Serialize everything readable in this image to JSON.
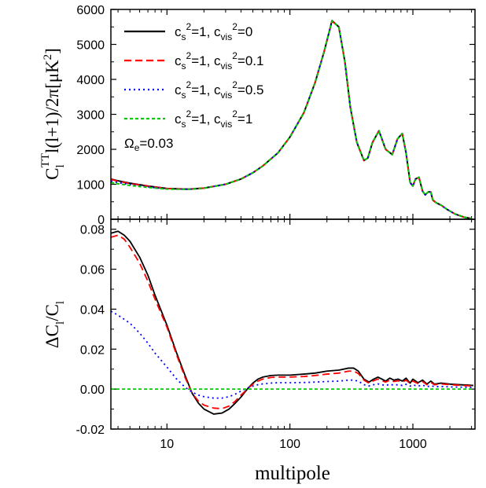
{
  "chart_data": [
    {
      "type": "line",
      "panel": "top",
      "title": "",
      "xlabel": "multipole",
      "ylabel": {
        "base": "C",
        "sub": "l",
        "sup": "TT",
        "rest": "l(l+1)/2π[μK",
        "unit_sup": "2",
        "close": "]"
      },
      "xscale": "log",
      "xlim": [
        3.5,
        3200
      ],
      "ylim": [
        0,
        6000
      ],
      "x_ticks": [
        10,
        100,
        1000
      ],
      "x_tick_labels": [
        "10",
        "100",
        "1000"
      ],
      "y_ticks": [
        0,
        1000,
        2000,
        3000,
        4000,
        5000,
        6000
      ],
      "y_tick_labels": [
        "0",
        "1000",
        "2000",
        "3000",
        "4000",
        "5000",
        "6000"
      ],
      "legend_position": "top-left",
      "annotation": {
        "base": "Ω",
        "sub": "e",
        "rest": "=0.03"
      },
      "series": [
        {
          "legend": {
            "c": "c",
            "s": "s",
            "eq1": "=1,  ",
            "cv": "c",
            "vis": "vis",
            "eq2": "=0",
            "sup": "2"
          },
          "color": "#000000",
          "dash": "solid",
          "x": [
            3.5,
            4,
            5,
            7,
            10,
            15,
            20,
            30,
            40,
            50,
            60,
            80,
            100,
            130,
            160,
            190,
            220,
            250,
            280,
            310,
            350,
            400,
            430,
            470,
            530,
            600,
            680,
            750,
            820,
            880,
            950,
            1000,
            1050,
            1120,
            1200,
            1260,
            1330,
            1400,
            1450,
            1550,
            1700,
            1900,
            2200,
            2600,
            3000
          ],
          "y": [
            1150,
            1100,
            1030,
            950,
            880,
            860,
            890,
            1000,
            1150,
            1330,
            1520,
            1900,
            2350,
            3050,
            3900,
            4800,
            5680,
            5500,
            4500,
            3200,
            2200,
            1680,
            1750,
            2200,
            2530,
            2000,
            1850,
            2300,
            2450,
            1900,
            1050,
            950,
            1150,
            1200,
            800,
            700,
            780,
            780,
            550,
            470,
            400,
            280,
            150,
            60,
            20
          ]
        },
        {
          "legend": {
            "c": "c",
            "s": "s",
            "eq1": "=1,  ",
            "cv": "c",
            "vis": "vis",
            "eq2": "=0.1",
            "sup": "2"
          },
          "color": "#ff0000",
          "dash": "9,5",
          "x": [
            3.5,
            4,
            5,
            7,
            10,
            15,
            20,
            30,
            40,
            50,
            60,
            80,
            100,
            130,
            160,
            190,
            220,
            250,
            280,
            310,
            350,
            400,
            430,
            470,
            530,
            600,
            680,
            750,
            820,
            880,
            950,
            1000,
            1050,
            1120,
            1200,
            1260,
            1330,
            1400,
            1450,
            1550,
            1700,
            1900,
            2200,
            2600,
            3000
          ],
          "y": [
            1140,
            1090,
            1020,
            945,
            878,
            860,
            890,
            1000,
            1150,
            1330,
            1520,
            1900,
            2350,
            3050,
            3900,
            4800,
            5670,
            5500,
            4500,
            3200,
            2200,
            1680,
            1750,
            2200,
            2530,
            2000,
            1850,
            2300,
            2450,
            1900,
            1050,
            950,
            1150,
            1200,
            800,
            700,
            780,
            780,
            550,
            470,
            400,
            280,
            150,
            60,
            20
          ]
        },
        {
          "legend": {
            "c": "c",
            "s": "s",
            "eq1": "=1,  ",
            "cv": "c",
            "vis": "vis",
            "eq2": "=0.5",
            "sup": "2"
          },
          "color": "#0000ff",
          "dash": "2,4",
          "x": [
            3.5,
            4,
            5,
            7,
            10,
            15,
            20,
            30,
            40,
            50,
            60,
            80,
            100,
            130,
            160,
            190,
            220,
            250,
            280,
            310,
            350,
            400,
            430,
            470,
            530,
            600,
            680,
            750,
            820,
            880,
            950,
            1000,
            1050,
            1120,
            1200,
            1260,
            1330,
            1400,
            1450,
            1550,
            1700,
            1900,
            2200,
            2600,
            3000
          ],
          "y": [
            1090,
            1050,
            990,
            925,
            868,
            858,
            888,
            1000,
            1150,
            1330,
            1520,
            1900,
            2350,
            3050,
            3900,
            4800,
            5670,
            5500,
            4500,
            3200,
            2200,
            1680,
            1750,
            2200,
            2530,
            2000,
            1850,
            2300,
            2450,
            1900,
            1050,
            950,
            1150,
            1200,
            800,
            700,
            780,
            780,
            550,
            470,
            400,
            280,
            150,
            60,
            20
          ]
        },
        {
          "legend": {
            "c": "c",
            "s": "s",
            "eq1": "=1,  ",
            "cv": "c",
            "vis": "vis",
            "eq2": "=1",
            "sup": "2"
          },
          "color": "#00cc00",
          "dash": "4,3",
          "x": [
            3.5,
            4,
            5,
            7,
            10,
            15,
            20,
            30,
            40,
            50,
            60,
            80,
            100,
            130,
            160,
            190,
            220,
            250,
            280,
            310,
            350,
            400,
            430,
            470,
            530,
            600,
            680,
            750,
            820,
            880,
            950,
            1000,
            1050,
            1120,
            1200,
            1260,
            1330,
            1400,
            1450,
            1550,
            1700,
            1900,
            2200,
            2600,
            3000
          ],
          "y": [
            1050,
            1015,
            965,
            910,
            862,
            856,
            888,
            1000,
            1150,
            1330,
            1520,
            1900,
            2350,
            3050,
            3900,
            4800,
            5670,
            5500,
            4500,
            3200,
            2200,
            1680,
            1750,
            2200,
            2530,
            2000,
            1850,
            2300,
            2450,
            1900,
            1050,
            950,
            1150,
            1200,
            800,
            700,
            780,
            780,
            550,
            470,
            400,
            280,
            150,
            60,
            20
          ]
        }
      ]
    },
    {
      "type": "line",
      "panel": "bottom",
      "title": "",
      "xlabel": "multipole",
      "ylabel": {
        "delta": "Δ",
        "base": "C",
        "sub": "l",
        "slash": "/",
        "base2": "C",
        "sub2": "l"
      },
      "xscale": "log",
      "xlim": [
        3.5,
        3200
      ],
      "ylim": [
        -0.02,
        0.085
      ],
      "x_ticks": [
        10,
        100,
        1000
      ],
      "x_tick_labels": [
        "10",
        "100",
        "1000"
      ],
      "y_ticks": [
        -0.02,
        0.0,
        0.02,
        0.04,
        0.06,
        0.08
      ],
      "y_tick_labels": [
        "-0.02",
        "0.00",
        "0.02",
        "0.04",
        "0.06",
        "0.08"
      ],
      "series": [
        {
          "color": "#000000",
          "dash": "solid",
          "x": [
            3.5,
            4,
            4.5,
            5,
            6,
            7,
            8,
            10,
            12,
            14,
            16,
            18,
            20,
            24,
            28,
            32,
            36,
            40,
            45,
            50,
            55,
            60,
            70,
            80,
            100,
            130,
            160,
            200,
            250,
            300,
            330,
            360,
            400,
            440,
            480,
            520,
            560,
            600,
            650,
            700,
            760,
            820,
            880,
            950,
            1000,
            1100,
            1200,
            1300,
            1400,
            1500,
            1700,
            2000,
            2400,
            2800,
            3100
          ],
          "y": [
            0.078,
            0.079,
            0.077,
            0.074,
            0.066,
            0.057,
            0.047,
            0.032,
            0.018,
            0.007,
            -0.002,
            -0.007,
            -0.01,
            -0.0125,
            -0.012,
            -0.01,
            -0.007,
            -0.004,
            0.0,
            0.003,
            0.005,
            0.006,
            0.0068,
            0.007,
            0.007,
            0.0075,
            0.008,
            0.009,
            0.0095,
            0.0105,
            0.0105,
            0.009,
            0.005,
            0.0035,
            0.005,
            0.006,
            0.005,
            0.004,
            0.0055,
            0.0045,
            0.005,
            0.004,
            0.0055,
            0.003,
            0.005,
            0.0032,
            0.0045,
            0.0025,
            0.004,
            0.0025,
            0.003,
            0.0025,
            0.0022,
            0.002,
            0.0018
          ]
        },
        {
          "color": "#ff0000",
          "dash": "9,5",
          "x": [
            3.5,
            4,
            4.5,
            5,
            6,
            7,
            8,
            10,
            12,
            14,
            16,
            18,
            20,
            24,
            28,
            32,
            36,
            40,
            45,
            50,
            55,
            60,
            70,
            80,
            100,
            130,
            160,
            200,
            250,
            300,
            330,
            360,
            400,
            440,
            480,
            520,
            560,
            600,
            650,
            700,
            760,
            820,
            880,
            950,
            1000,
            1100,
            1200,
            1300,
            1400,
            1500,
            1700,
            2000,
            2400,
            2800,
            3100
          ],
          "y": [
            0.076,
            0.077,
            0.075,
            0.071,
            0.063,
            0.054,
            0.045,
            0.031,
            0.017,
            0.006,
            -0.002,
            -0.006,
            -0.008,
            -0.0095,
            -0.0098,
            -0.0085,
            -0.006,
            -0.003,
            0.0,
            0.0025,
            0.004,
            0.005,
            0.0058,
            0.006,
            0.006,
            0.0063,
            0.0068,
            0.0075,
            0.008,
            0.009,
            0.009,
            0.0078,
            0.0045,
            0.003,
            0.0042,
            0.005,
            0.0042,
            0.0035,
            0.0045,
            0.0038,
            0.0042,
            0.0035,
            0.0045,
            0.0028,
            0.004,
            0.0028,
            0.0038,
            0.0022,
            0.0033,
            0.0022,
            0.0026,
            0.0022,
            0.0019,
            0.0017,
            0.0015
          ]
        },
        {
          "color": "#0000ff",
          "dash": "2,4",
          "x": [
            3.5,
            4,
            5,
            6,
            7,
            8,
            10,
            12,
            14,
            16,
            18,
            20,
            24,
            28,
            32,
            36,
            40,
            45,
            50,
            55,
            60,
            70,
            80,
            100,
            130,
            160,
            200,
            250,
            300,
            330,
            360,
            400,
            440,
            480,
            520,
            560,
            600,
            650,
            700,
            760,
            820,
            880,
            950,
            1000,
            1100,
            1200,
            1300,
            1400,
            1500,
            1700,
            2000,
            2400,
            2800,
            3100
          ],
          "y": [
            0.039,
            0.037,
            0.033,
            0.028,
            0.023,
            0.018,
            0.011,
            0.005,
            0.001,
            -0.0015,
            -0.003,
            -0.0038,
            -0.0045,
            -0.0045,
            -0.0038,
            -0.0025,
            -0.001,
            0.0006,
            0.0015,
            0.0022,
            0.0026,
            0.003,
            0.0032,
            0.0032,
            0.0033,
            0.0035,
            0.0038,
            0.004,
            0.0045,
            0.0045,
            0.004,
            0.0022,
            0.0016,
            0.0022,
            0.0026,
            0.0022,
            0.0018,
            0.0024,
            0.002,
            0.0022,
            0.0018,
            0.0024,
            0.0015,
            0.0021,
            0.0015,
            0.002,
            0.0012,
            0.0017,
            0.0012,
            0.0013,
            0.0011,
            0.001,
            0.0009,
            0.0008
          ]
        },
        {
          "color": "#00cc00",
          "dash": "4,3",
          "x": [
            3.5,
            3100
          ],
          "y": [
            0.0,
            0.0
          ]
        }
      ]
    }
  ]
}
